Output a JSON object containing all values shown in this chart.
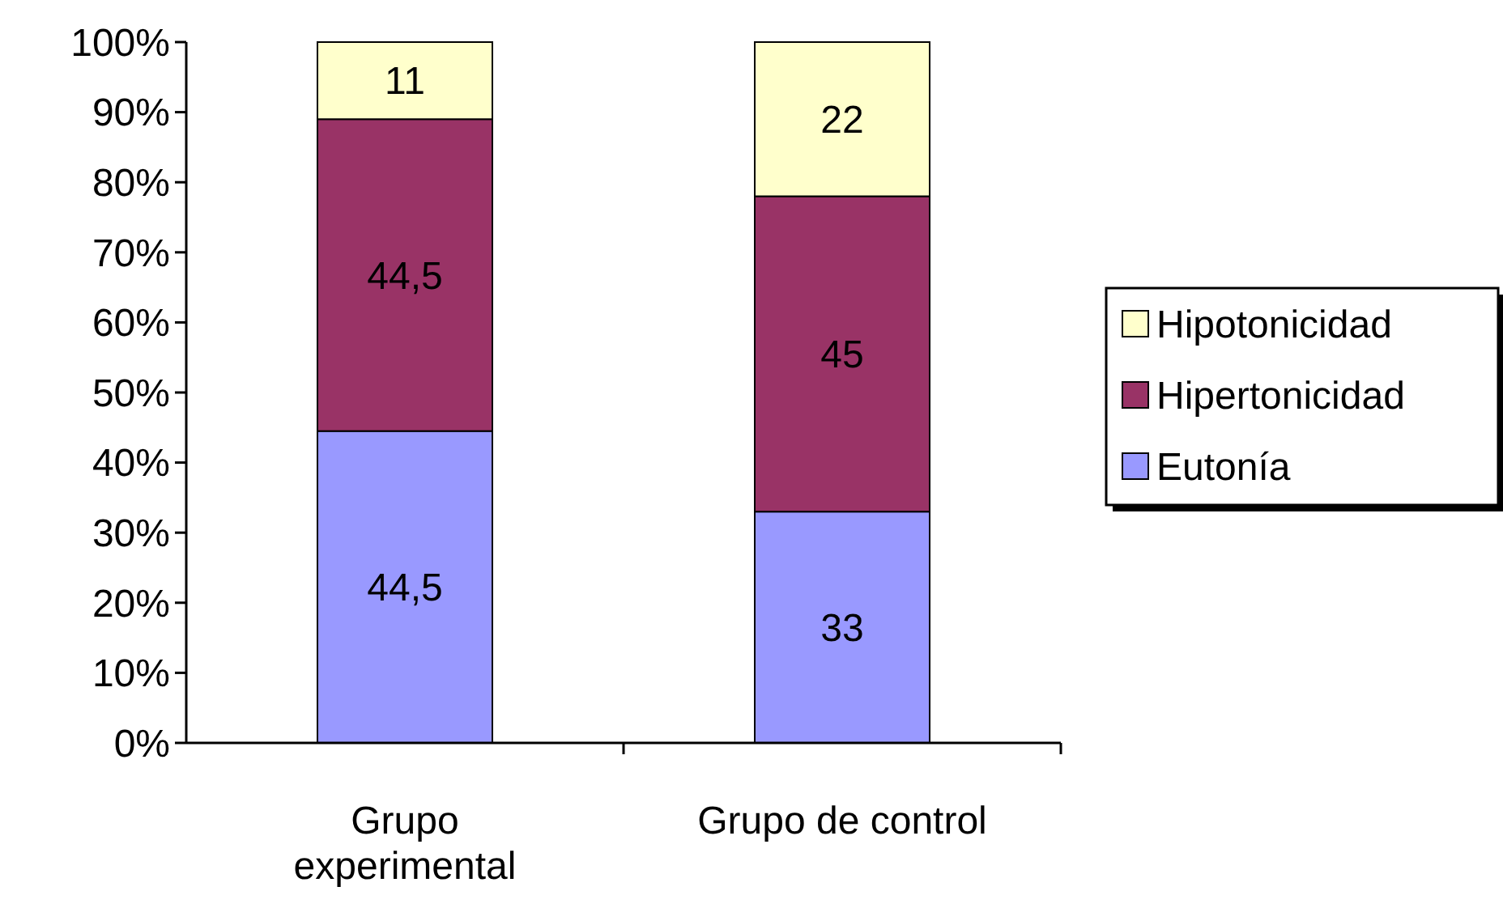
{
  "chart_data": {
    "type": "bar",
    "stacked": true,
    "categories": [
      "Grupo experimental",
      "Grupo de control"
    ],
    "series": [
      {
        "name": "Eutonía",
        "color": "#9999ff",
        "values": [
          44.5,
          33
        ],
        "value_labels": [
          "44,5",
          "33"
        ]
      },
      {
        "name": "Hipertonicidad",
        "color": "#993366",
        "values": [
          44.5,
          45
        ],
        "value_labels": [
          "44,5",
          "45"
        ]
      },
      {
        "name": "Hipotonicidad",
        "color": "#ffffcc",
        "values": [
          11,
          22
        ],
        "value_labels": [
          "11",
          "22"
        ]
      }
    ],
    "ylim": [
      0,
      100
    ],
    "yticks": [
      {
        "value": 0,
        "label": "0%"
      },
      {
        "value": 10,
        "label": "10%"
      },
      {
        "value": 20,
        "label": "20%"
      },
      {
        "value": 30,
        "label": "30%"
      },
      {
        "value": 40,
        "label": "40%"
      },
      {
        "value": 50,
        "label": "50%"
      },
      {
        "value": 60,
        "label": "60%"
      },
      {
        "value": 70,
        "label": "70%"
      },
      {
        "value": 80,
        "label": "80%"
      },
      {
        "value": 90,
        "label": "90%"
      },
      {
        "value": 100,
        "label": "100%"
      }
    ],
    "grid": false,
    "legend": "right"
  }
}
